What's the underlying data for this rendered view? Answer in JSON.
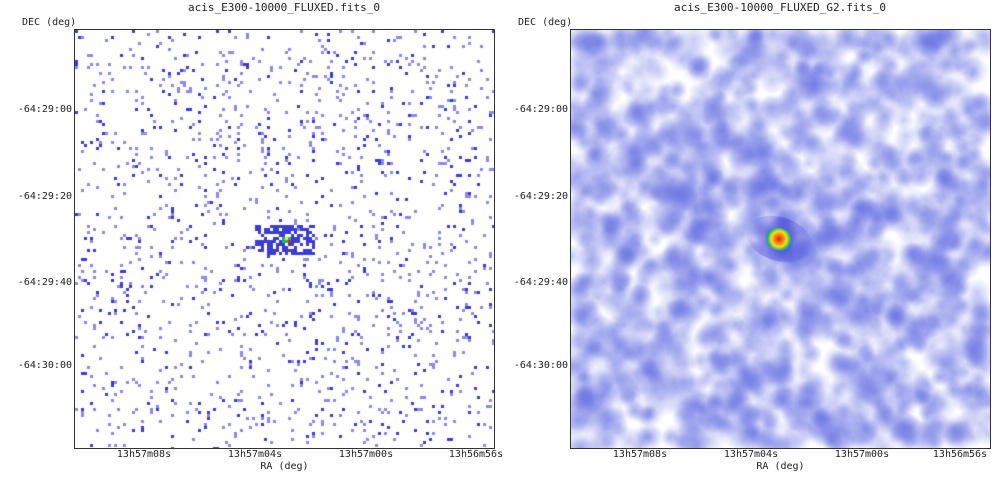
{
  "panels": [
    {
      "title": "acis_E300-10000_FLUXED.fits_0",
      "ylabel": "DEC (deg)",
      "xlabel": "RA (deg)",
      "yticks": [
        "-64:29:00",
        "-64:29:20",
        "-64:29:40",
        "-64:30:00"
      ],
      "xticks": [
        "13h57m08s",
        "13h57m04s",
        "13h57m00s",
        "13h56m56s"
      ],
      "style": "sparse-pixels"
    },
    {
      "title": "acis_E300-10000_FLUXED_G2.fits_0",
      "ylabel": "DEC (deg)",
      "xlabel": "RA (deg)",
      "yticks": [
        "-64:29:00",
        "-64:29:20",
        "-64:29:40",
        "-64:30:00"
      ],
      "xticks": [
        "13h57m08s",
        "13h57m04s",
        "13h57m00s",
        "13h56m56s"
      ],
      "style": "smoothed"
    }
  ],
  "colors": {
    "pixel_blue": "#3b3bd9",
    "pixel_light": "#8a8af0",
    "smooth_blue": "#6a72e0",
    "source_core": "#e0201a",
    "source_mid": "#f6e21a",
    "source_outer": "#1fb86a"
  }
}
